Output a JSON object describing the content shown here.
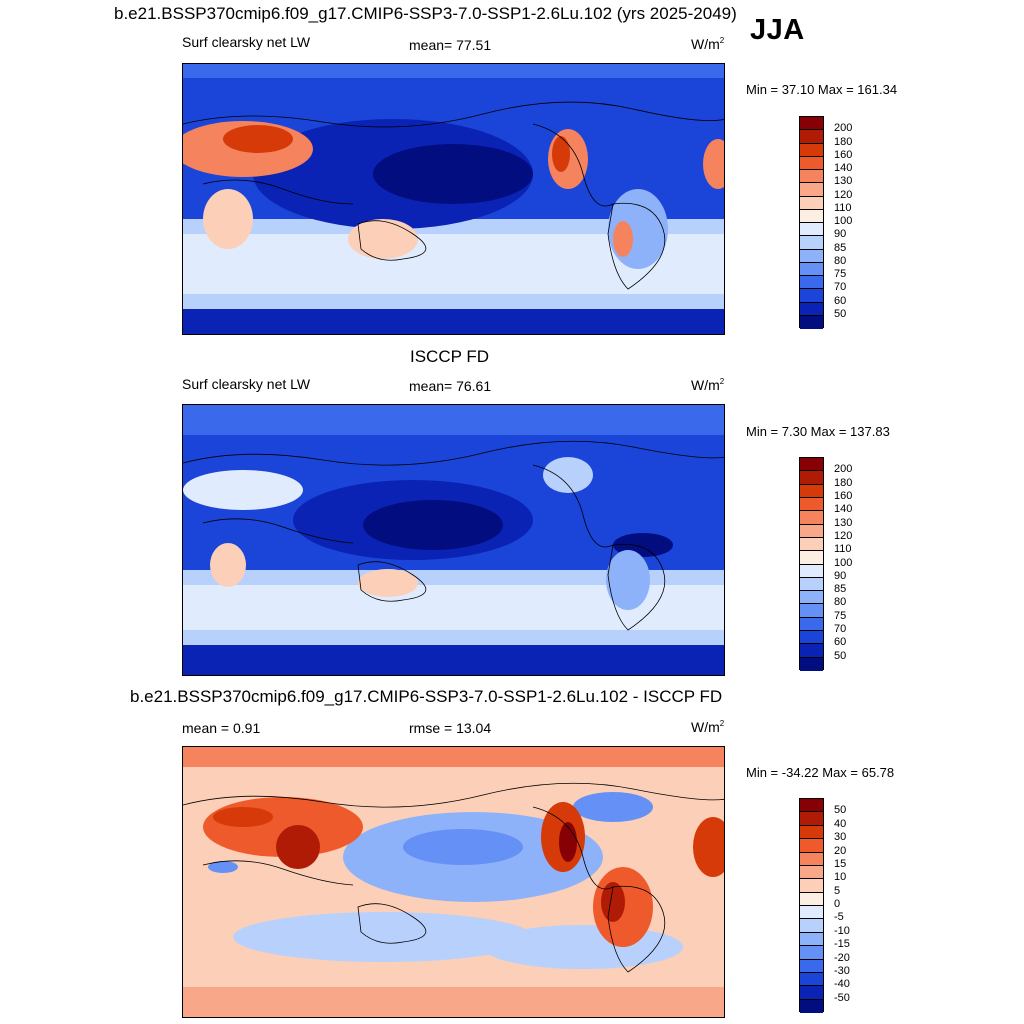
{
  "season": "JJA",
  "panels": [
    {
      "title": "b.e21.BSSP370cmip6.f09_g17.CMIP6-SSP3-7.0-SSP1-2.6Lu.102 (yrs 2025-2049)",
      "left_label": "Surf clearsky net LW",
      "stat_label": "mean=  77.51",
      "units_base": "W/m",
      "units_exp": "2",
      "minmax": "Min =  37.10 Max = 161.34",
      "colorbar_labels": [
        "200",
        "180",
        "160",
        "140",
        "130",
        "120",
        "110",
        "100",
        "90",
        "85",
        "80",
        "75",
        "70",
        "60",
        "50"
      ]
    },
    {
      "title": "ISCCP FD",
      "left_label": "Surf clearsky net LW",
      "stat_label": "mean=  76.61",
      "units_base": "W/m",
      "units_exp": "2",
      "minmax": "Min =   7.30 Max = 137.83",
      "colorbar_labels": [
        "200",
        "180",
        "160",
        "140",
        "130",
        "120",
        "110",
        "100",
        "90",
        "85",
        "80",
        "75",
        "70",
        "60",
        "50"
      ]
    },
    {
      "title": "b.e21.BSSP370cmip6.f09_g17.CMIP6-SSP3-7.0-SSP1-2.6Lu.102 - ISCCP FD",
      "left_label": "mean =   0.91",
      "stat_label": "rmse =  13.04",
      "units_base": "W/m",
      "units_exp": "2",
      "minmax": "Min = -34.22 Max =  65.78",
      "colorbar_labels": [
        "50",
        "40",
        "30",
        "20",
        "15",
        "10",
        "5",
        "0",
        "-5",
        "-10",
        "-15",
        "-20",
        "-30",
        "-40",
        "-50"
      ]
    }
  ],
  "colormap": [
    "#860006",
    "#b01b06",
    "#d63a08",
    "#ee5a2c",
    "#f5835e",
    "#f8a888",
    "#fbcfb8",
    "#fdeee3",
    "#e0ecfe",
    "#b8d0fc",
    "#8eb2fa",
    "#6590f5",
    "#3b69ec",
    "#1b44d8",
    "#0a23b4",
    "#020d80"
  ]
}
